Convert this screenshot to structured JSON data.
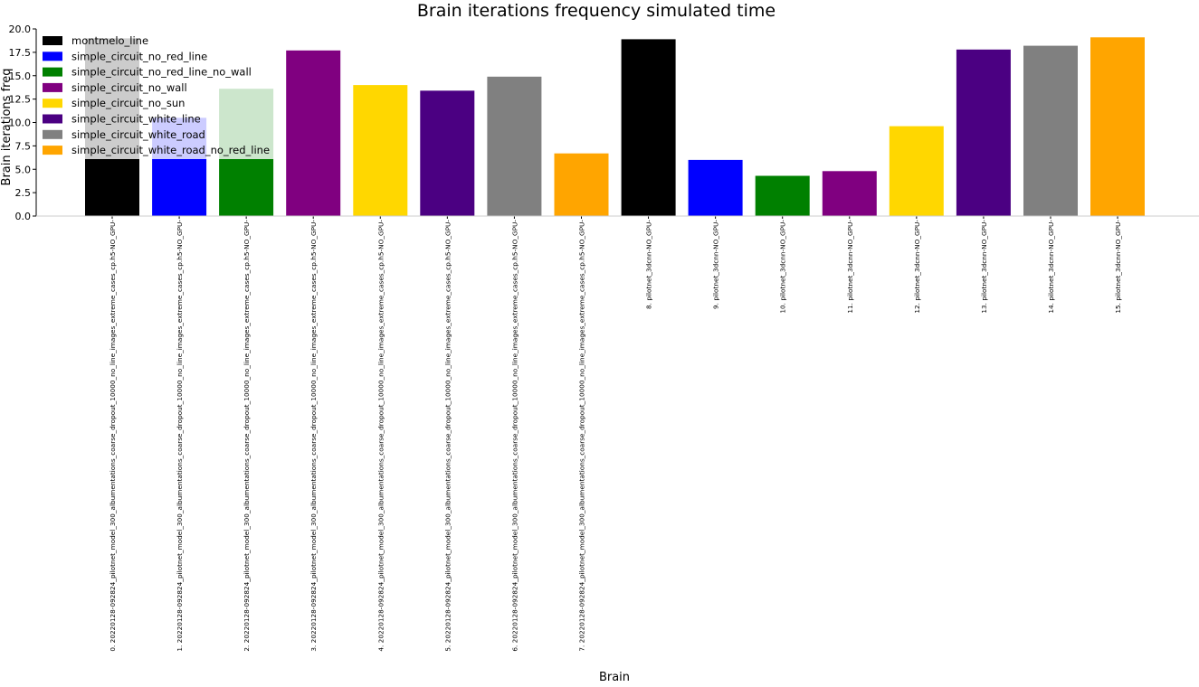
{
  "chart_data": {
    "type": "bar",
    "title": "Brain iterations frequency simulated time",
    "xlabel": "Brain",
    "ylabel": "Brain iterations freq",
    "ylim": [
      0,
      20
    ],
    "yticks": [
      "0.0",
      "2.5",
      "5.0",
      "7.5",
      "10.0",
      "12.5",
      "15.0",
      "17.5",
      "20.0"
    ],
    "grid": false,
    "legend_position": "top-left",
    "categories": [
      "0. 20220128-092824_pilotnet_model_300_albumentations_coarse_dropout_10000_no_line_images_extreme_cases_cp.h5-NO_GPU-",
      "1. 20220128-092824_pilotnet_model_300_albumentations_coarse_dropout_10000_no_line_images_extreme_cases_cp.h5-NO_GPU-",
      "2. 20220128-092824_pilotnet_model_300_albumentations_coarse_dropout_10000_no_line_images_extreme_cases_cp.h5-NO_GPU-",
      "3. 20220128-092824_pilotnet_model_300_albumentations_coarse_dropout_10000_no_line_images_extreme_cases_cp.h5-NO_GPU-",
      "4. 20220128-092824_pilotnet_model_300_albumentations_coarse_dropout_10000_no_line_images_extreme_cases_cp.h5-NO_GPU-",
      "5. 20220128-092824_pilotnet_model_300_albumentations_coarse_dropout_10000_no_line_images_extreme_cases_cp.h5-NO_GPU-",
      "6. 20220128-092824_pilotnet_model_300_albumentations_coarse_dropout_10000_no_line_images_extreme_cases_cp.h5-NO_GPU-",
      "7. 20220128-092824_pilotnet_model_300_albumentations_coarse_dropout_10000_no_line_images_extreme_cases_cp.h5-NO_GPU-",
      "8. pilotnet_3dcnn-NO_GPU-",
      "9. pilotnet_3dcnn-NO_GPU-",
      "10. pilotnet_3dcnn-NO_GPU-",
      "11. pilotnet_3dcnn-NO_GPU-",
      "12. pilotnet_3dcnn-NO_GPU-",
      "13. pilotnet_3dcnn-NO_GPU-",
      "14. pilotnet_3dcnn-NO_GPU-",
      "15. pilotnet_3dcnn-NO_GPU-"
    ],
    "values": [
      19.0,
      10.5,
      13.6,
      17.7,
      14.0,
      13.4,
      14.9,
      6.7,
      18.9,
      6.0,
      4.3,
      4.8,
      9.6,
      17.8,
      18.2,
      19.1
    ],
    "bar_colors": [
      "#000000",
      "#0000ff",
      "#008000",
      "#800080",
      "#ffd700",
      "#4b0082",
      "#808080",
      "#ffa500",
      "#000000",
      "#0000ff",
      "#008000",
      "#800080",
      "#ffd700",
      "#4b0082",
      "#808080",
      "#ffa500"
    ],
    "legend": [
      {
        "label": "montmelo_line",
        "color": "#000000"
      },
      {
        "label": "simple_circuit_no_red_line",
        "color": "#0000ff"
      },
      {
        "label": "simple_circuit_no_red_line_no_wall",
        "color": "#008000"
      },
      {
        "label": "simple_circuit_no_wall",
        "color": "#800080"
      },
      {
        "label": "simple_circuit_no_sun",
        "color": "#ffd700"
      },
      {
        "label": "simple_circuit_white_line",
        "color": "#4b0082"
      },
      {
        "label": "simple_circuit_white_road",
        "color": "#808080"
      },
      {
        "label": "simple_circuit_white_road_no_red_line",
        "color": "#ffa500"
      }
    ]
  }
}
